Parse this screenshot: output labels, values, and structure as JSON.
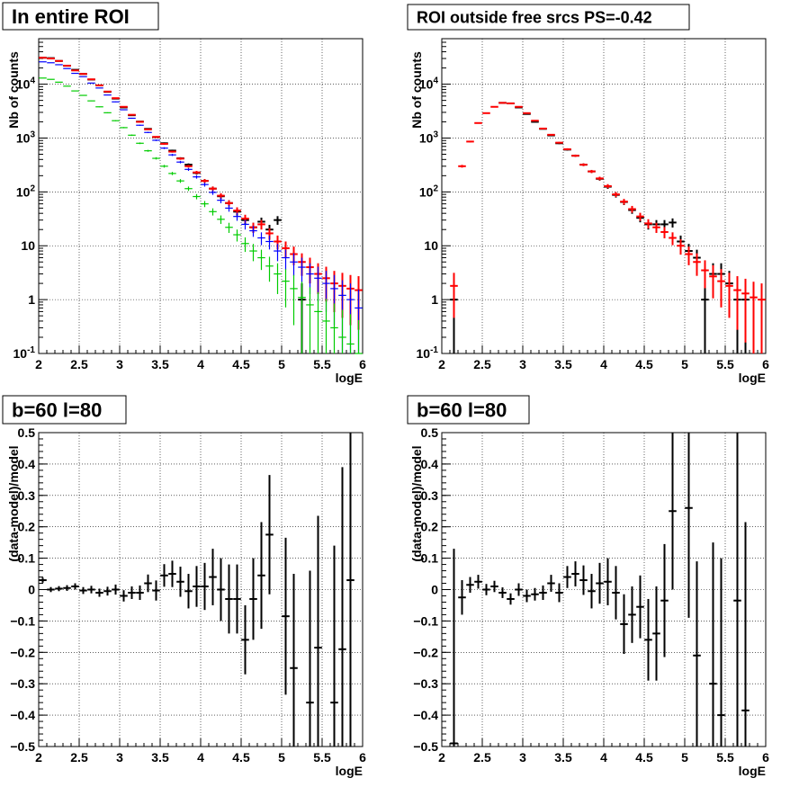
{
  "colors": {
    "data": "#000000",
    "model_total": "#ff0000",
    "model_blue": "#0000ff",
    "model_green": "#00cc00",
    "grid": "#000000"
  },
  "chart_data": [
    {
      "type": "scatter",
      "title": "In entire ROI",
      "xlabel": "logE",
      "ylabel": "Nb of counts",
      "xlim": [
        2,
        6
      ],
      "ylim": [
        0.1,
        70000
      ],
      "yscale": "log",
      "grid": true,
      "x_ticks": [
        "2",
        "2.5",
        "3",
        "3.5",
        "4",
        "4.5",
        "5",
        "5.5",
        "6"
      ],
      "y_ticks": [
        "10^-1",
        "1",
        "10",
        "10^2",
        "10^3",
        "10^4"
      ],
      "x": [
        2.05,
        2.15,
        2.25,
        2.35,
        2.45,
        2.55,
        2.65,
        2.75,
        2.85,
        2.95,
        3.05,
        3.15,
        3.25,
        3.35,
        3.45,
        3.55,
        3.65,
        3.75,
        3.85,
        3.95,
        4.05,
        4.15,
        4.25,
        4.35,
        4.45,
        4.55,
        4.65,
        4.75,
        4.85,
        4.95,
        5.05,
        5.15,
        5.25,
        5.35,
        5.45,
        5.55,
        5.65,
        5.75,
        5.85,
        5.95
      ],
      "series": [
        {
          "color": "#000000",
          "values": [
            31000,
            30500,
            27000,
            22000,
            18500,
            15500,
            12200,
            9500,
            7200,
            5400,
            3700,
            2650,
            2020,
            1480,
            1040,
            800,
            584,
            420,
            320,
            225,
            160,
            115,
            83,
            62,
            43,
            30,
            22,
            28,
            20,
            30,
            null,
            null,
            1,
            null,
            null,
            null,
            null,
            null,
            null,
            null
          ]
        },
        {
          "color": "#ff0000",
          "values": [
            31000,
            30000,
            27000,
            22000,
            18000,
            15500,
            12300,
            9500,
            7300,
            5500,
            3800,
            2700,
            2000,
            1450,
            1050,
            780,
            560,
            415,
            300,
            230,
            160,
            115,
            85,
            62,
            45,
            32,
            22,
            25,
            17,
            12,
            9,
            7,
            5,
            4,
            3,
            2.5,
            2,
            1.8,
            1.6,
            1.5
          ]
        },
        {
          "color": "#0000ff",
          "values": [
            26000,
            25000,
            23000,
            19500,
            15900,
            13800,
            10500,
            8500,
            6300,
            4700,
            3350,
            2330,
            1730,
            1270,
            910,
            650,
            487,
            358,
            262,
            190,
            137,
            98,
            70,
            50,
            35,
            25,
            19,
            14,
            12,
            8,
            6,
            5,
            4,
            3,
            2.5,
            2,
            1.6,
            1.2,
            1,
            0.7
          ]
        },
        {
          "color": "#00cc00",
          "values": [
            13000,
            12300,
            10900,
            9200,
            7500,
            6200,
            4900,
            3800,
            2950,
            2100,
            1560,
            1130,
            800,
            580,
            420,
            300,
            220,
            160,
            115,
            82,
            60,
            43,
            31,
            22,
            16,
            11,
            8,
            6,
            4.2,
            3,
            2.2,
            1.6,
            1.1,
            0.8,
            0.6,
            0.4,
            0.3,
            0.2,
            0.15,
            0.1
          ]
        }
      ]
    },
    {
      "type": "scatter",
      "title": "ROI outside free srcs PS=-0.42",
      "xlabel": "logE",
      "ylabel": "Nb of counts",
      "xlim": [
        2,
        6
      ],
      "ylim": [
        0.1,
        70000
      ],
      "yscale": "log",
      "grid": true,
      "x_ticks": [
        "2",
        "2.5",
        "3",
        "3.5",
        "4",
        "4.5",
        "5",
        "5.5",
        "6"
      ],
      "y_ticks": [
        "10^-1",
        "1",
        "10",
        "10^2",
        "10^3",
        "10^4"
      ],
      "x": [
        2.15,
        2.25,
        2.35,
        2.45,
        2.55,
        2.65,
        2.75,
        2.85,
        2.95,
        3.05,
        3.15,
        3.25,
        3.35,
        3.45,
        3.55,
        3.65,
        3.75,
        3.85,
        3.95,
        4.05,
        4.15,
        4.25,
        4.35,
        4.45,
        4.55,
        4.65,
        4.75,
        4.85,
        4.95,
        5.05,
        5.15,
        5.25,
        5.35,
        5.45,
        5.55,
        5.65,
        5.75,
        5.85,
        5.95
      ],
      "series": [
        {
          "color": "#000000",
          "values": [
            1,
            null,
            null,
            null,
            null,
            null,
            4500,
            4400,
            3700,
            2800,
            2000,
            1480,
            1120,
            800,
            610,
            470,
            320,
            240,
            175,
            125,
            88,
            65,
            46,
            33,
            25,
            25,
            25,
            27,
            12,
            8,
            6,
            1,
            3,
            3,
            2,
            1,
            1,
            null,
            null
          ]
        },
        {
          "color": "#ff0000",
          "values": [
            1.8,
            300,
            860,
            1900,
            2900,
            3800,
            4500,
            4400,
            3800,
            2900,
            2100,
            1500,
            1150,
            820,
            620,
            470,
            320,
            240,
            178,
            128,
            90,
            66,
            48,
            35,
            26,
            22,
            18,
            14,
            10,
            7,
            5,
            3.5,
            2.7,
            2.2,
            1.8,
            1.5,
            1.3,
            1.1,
            1
          ]
        }
      ]
    },
    {
      "type": "scatter",
      "title": "b=60 l=80",
      "xlabel": "logE",
      "ylabel": "(data-model)/model",
      "xlim": [
        2,
        6
      ],
      "ylim": [
        -0.5,
        0.5
      ],
      "grid": true,
      "x_ticks": [
        "2",
        "2.5",
        "3",
        "3.5",
        "4",
        "4.5",
        "5",
        "5.5",
        "6"
      ],
      "y_ticks": [
        "-0.5",
        "-0.4",
        "-0.3",
        "-0.2",
        "-0.1",
        "0",
        "0.1",
        "0.2",
        "0.3",
        "0.4",
        "0.5"
      ],
      "points": [
        {
          "x": 2.05,
          "y": 0.03,
          "e": 0.008
        },
        {
          "x": 2.15,
          "y": 0.0,
          "e": 0.008
        },
        {
          "x": 2.25,
          "y": 0.003,
          "e": 0.008
        },
        {
          "x": 2.35,
          "y": 0.005,
          "e": 0.009
        },
        {
          "x": 2.45,
          "y": 0.01,
          "e": 0.01
        },
        {
          "x": 2.55,
          "y": -0.003,
          "e": 0.011
        },
        {
          "x": 2.65,
          "y": 0.0,
          "e": 0.012
        },
        {
          "x": 2.75,
          "y": -0.01,
          "e": 0.013
        },
        {
          "x": 2.85,
          "y": -0.005,
          "e": 0.014
        },
        {
          "x": 2.95,
          "y": 0.0,
          "e": 0.016
        },
        {
          "x": 3.05,
          "y": -0.02,
          "e": 0.018
        },
        {
          "x": 3.15,
          "y": -0.01,
          "e": 0.02
        },
        {
          "x": 3.25,
          "y": -0.01,
          "e": 0.023
        },
        {
          "x": 3.35,
          "y": 0.02,
          "e": 0.028
        },
        {
          "x": 3.45,
          "y": -0.003,
          "e": 0.032
        },
        {
          "x": 3.55,
          "y": 0.045,
          "e": 0.036
        },
        {
          "x": 3.65,
          "y": 0.05,
          "e": 0.042
        },
        {
          "x": 3.75,
          "y": 0.025,
          "e": 0.048
        },
        {
          "x": 3.85,
          "y": -0.005,
          "e": 0.055
        },
        {
          "x": 3.95,
          "y": 0.01,
          "e": 0.065
        },
        {
          "x": 4.05,
          "y": 0.01,
          "e": 0.075
        },
        {
          "x": 4.15,
          "y": 0.04,
          "e": 0.09
        },
        {
          "x": 4.25,
          "y": 0.0,
          "e": 0.1
        },
        {
          "x": 4.35,
          "y": -0.03,
          "e": 0.11
        },
        {
          "x": 4.45,
          "y": -0.03,
          "e": 0.11
        },
        {
          "x": 4.55,
          "y": -0.16,
          "e": 0.11
        },
        {
          "x": 4.65,
          "y": -0.03,
          "e": 0.13
        },
        {
          "x": 4.75,
          "y": 0.045,
          "e": 0.17
        },
        {
          "x": 4.85,
          "y": 0.175,
          "e": 0.19
        },
        {
          "x": 5.05,
          "y": -0.085,
          "e": 0.25
        },
        {
          "x": 5.15,
          "y": -0.25,
          "e": 0.3
        },
        {
          "x": 5.35,
          "y": -0.36,
          "e": 0.42
        },
        {
          "x": 5.45,
          "y": -0.185,
          "e": 0.42
        },
        {
          "x": 5.65,
          "y": -0.36,
          "e": 0.5
        },
        {
          "x": 5.75,
          "y": -0.19,
          "e": 0.58
        },
        {
          "x": 5.85,
          "y": 0.03,
          "e": 0.65
        }
      ]
    },
    {
      "type": "scatter",
      "title": "b=60 l=80",
      "xlabel": "logE",
      "ylabel": "(data-model)/model",
      "xlim": [
        2,
        6
      ],
      "ylim": [
        -0.5,
        0.5
      ],
      "grid": true,
      "x_ticks": [
        "2",
        "2.5",
        "3",
        "3.5",
        "4",
        "4.5",
        "5",
        "5.5",
        "6"
      ],
      "y_ticks": [
        "-0.5",
        "-0.4",
        "-0.3",
        "-0.2",
        "-0.1",
        "0",
        "0.1",
        "0.2",
        "0.3",
        "0.4",
        "0.5"
      ],
      "points": [
        {
          "x": 2.15,
          "y": -0.49,
          "e": 0.62
        },
        {
          "x": 2.25,
          "y": -0.025,
          "e": 0.055
        },
        {
          "x": 2.35,
          "y": 0.015,
          "e": 0.025
        },
        {
          "x": 2.45,
          "y": 0.025,
          "e": 0.022
        },
        {
          "x": 2.55,
          "y": 0.0,
          "e": 0.018
        },
        {
          "x": 2.65,
          "y": 0.01,
          "e": 0.018
        },
        {
          "x": 2.75,
          "y": -0.01,
          "e": 0.017
        },
        {
          "x": 2.85,
          "y": -0.03,
          "e": 0.018
        },
        {
          "x": 2.95,
          "y": 0.0,
          "e": 0.02
        },
        {
          "x": 3.05,
          "y": -0.02,
          "e": 0.02
        },
        {
          "x": 3.15,
          "y": -0.015,
          "e": 0.02
        },
        {
          "x": 3.25,
          "y": -0.01,
          "e": 0.023
        },
        {
          "x": 3.35,
          "y": 0.02,
          "e": 0.027
        },
        {
          "x": 3.45,
          "y": -0.01,
          "e": 0.03
        },
        {
          "x": 3.55,
          "y": 0.04,
          "e": 0.035
        },
        {
          "x": 3.65,
          "y": 0.05,
          "e": 0.04
        },
        {
          "x": 3.75,
          "y": 0.03,
          "e": 0.047
        },
        {
          "x": 3.85,
          "y": -0.005,
          "e": 0.055
        },
        {
          "x": 3.95,
          "y": 0.02,
          "e": 0.065
        },
        {
          "x": 4.05,
          "y": 0.025,
          "e": 0.075
        },
        {
          "x": 4.15,
          "y": -0.01,
          "e": 0.085
        },
        {
          "x": 4.25,
          "y": -0.11,
          "e": 0.095
        },
        {
          "x": 4.35,
          "y": -0.08,
          "e": 0.09
        },
        {
          "x": 4.45,
          "y": -0.055,
          "e": 0.1
        },
        {
          "x": 4.55,
          "y": -0.16,
          "e": 0.13
        },
        {
          "x": 4.65,
          "y": -0.14,
          "e": 0.15
        },
        {
          "x": 4.75,
          "y": -0.035,
          "e": 0.18
        },
        {
          "x": 4.85,
          "y": 0.25,
          "e": 0.25
        },
        {
          "x": 5.05,
          "y": 0.26,
          "e": 0.35
        },
        {
          "x": 5.15,
          "y": -0.21,
          "e": 0.3
        },
        {
          "x": 5.35,
          "y": -0.3,
          "e": 0.45
        },
        {
          "x": 5.45,
          "y": -0.4,
          "e": 0.5
        },
        {
          "x": 5.65,
          "y": -0.035,
          "e": 0.55
        },
        {
          "x": 5.75,
          "y": -0.385,
          "e": 0.6
        }
      ]
    }
  ]
}
